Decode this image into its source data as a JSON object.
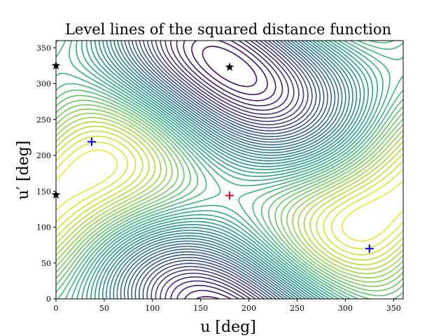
{
  "chart_data": {
    "type": "contour",
    "title": "Level lines of the squared distance function",
    "xlabel": "u [deg]",
    "ylabel": "u′ [deg]",
    "xlim": [
      0,
      360
    ],
    "ylim": [
      0,
      360
    ],
    "xticks": [
      "0",
      "50",
      "100",
      "150",
      "200",
      "250",
      "300",
      "350"
    ],
    "yticks": [
      "0",
      "50",
      "100",
      "150",
      "200",
      "250",
      "300",
      "350"
    ],
    "colormap": "viridis",
    "grid": false,
    "minimum": {
      "x": 180,
      "y": 144,
      "color": "#e8002a"
    },
    "saddle_points": [
      {
        "x": 37,
        "y": 219,
        "color": "#0000ff"
      },
      {
        "x": 325,
        "y": 70,
        "color": "#0000ff"
      }
    ],
    "maxima": [
      {
        "x": 0,
        "y": 325,
        "color": "#000000"
      },
      {
        "x": 0,
        "y": 145,
        "color": "#000000"
      },
      {
        "x": 180,
        "y": 323,
        "color": "#000000"
      }
    ]
  }
}
